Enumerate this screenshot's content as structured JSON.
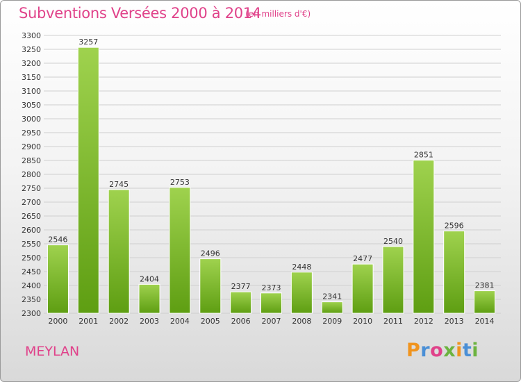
{
  "header": {
    "title": "Subventions Versées 2000 à 2014",
    "subtitle": "(en milliers d'€)"
  },
  "footer": {
    "commune": "MEYLAN",
    "logo": "Proxiti"
  },
  "colors": {
    "title": "#e0428a",
    "bar_top": "#9fd24e",
    "bar_bottom": "#5e9e12",
    "grid": "#cfcfcf",
    "logo_letters": [
      "#f0941e",
      "#4a8fd6",
      "#e0428a",
      "#6cb33f",
      "#f0941e",
      "#4a8fd6",
      "#6cb33f"
    ]
  },
  "chart_data": {
    "type": "bar",
    "title": "Subventions Versées 2000 à 2014",
    "subtitle": "(en milliers d'€)",
    "categories": [
      "2000",
      "2001",
      "2002",
      "2003",
      "2004",
      "2005",
      "2006",
      "2007",
      "2008",
      "2009",
      "2010",
      "2011",
      "2012",
      "2013",
      "2014"
    ],
    "values": [
      2546,
      3257,
      2745,
      2404,
      2753,
      2496,
      2377,
      2373,
      2448,
      2341,
      2477,
      2540,
      2851,
      2596,
      2381
    ],
    "ylim": [
      2300,
      3300
    ],
    "ytick_step": 50,
    "grid": true,
    "legend": "none"
  }
}
